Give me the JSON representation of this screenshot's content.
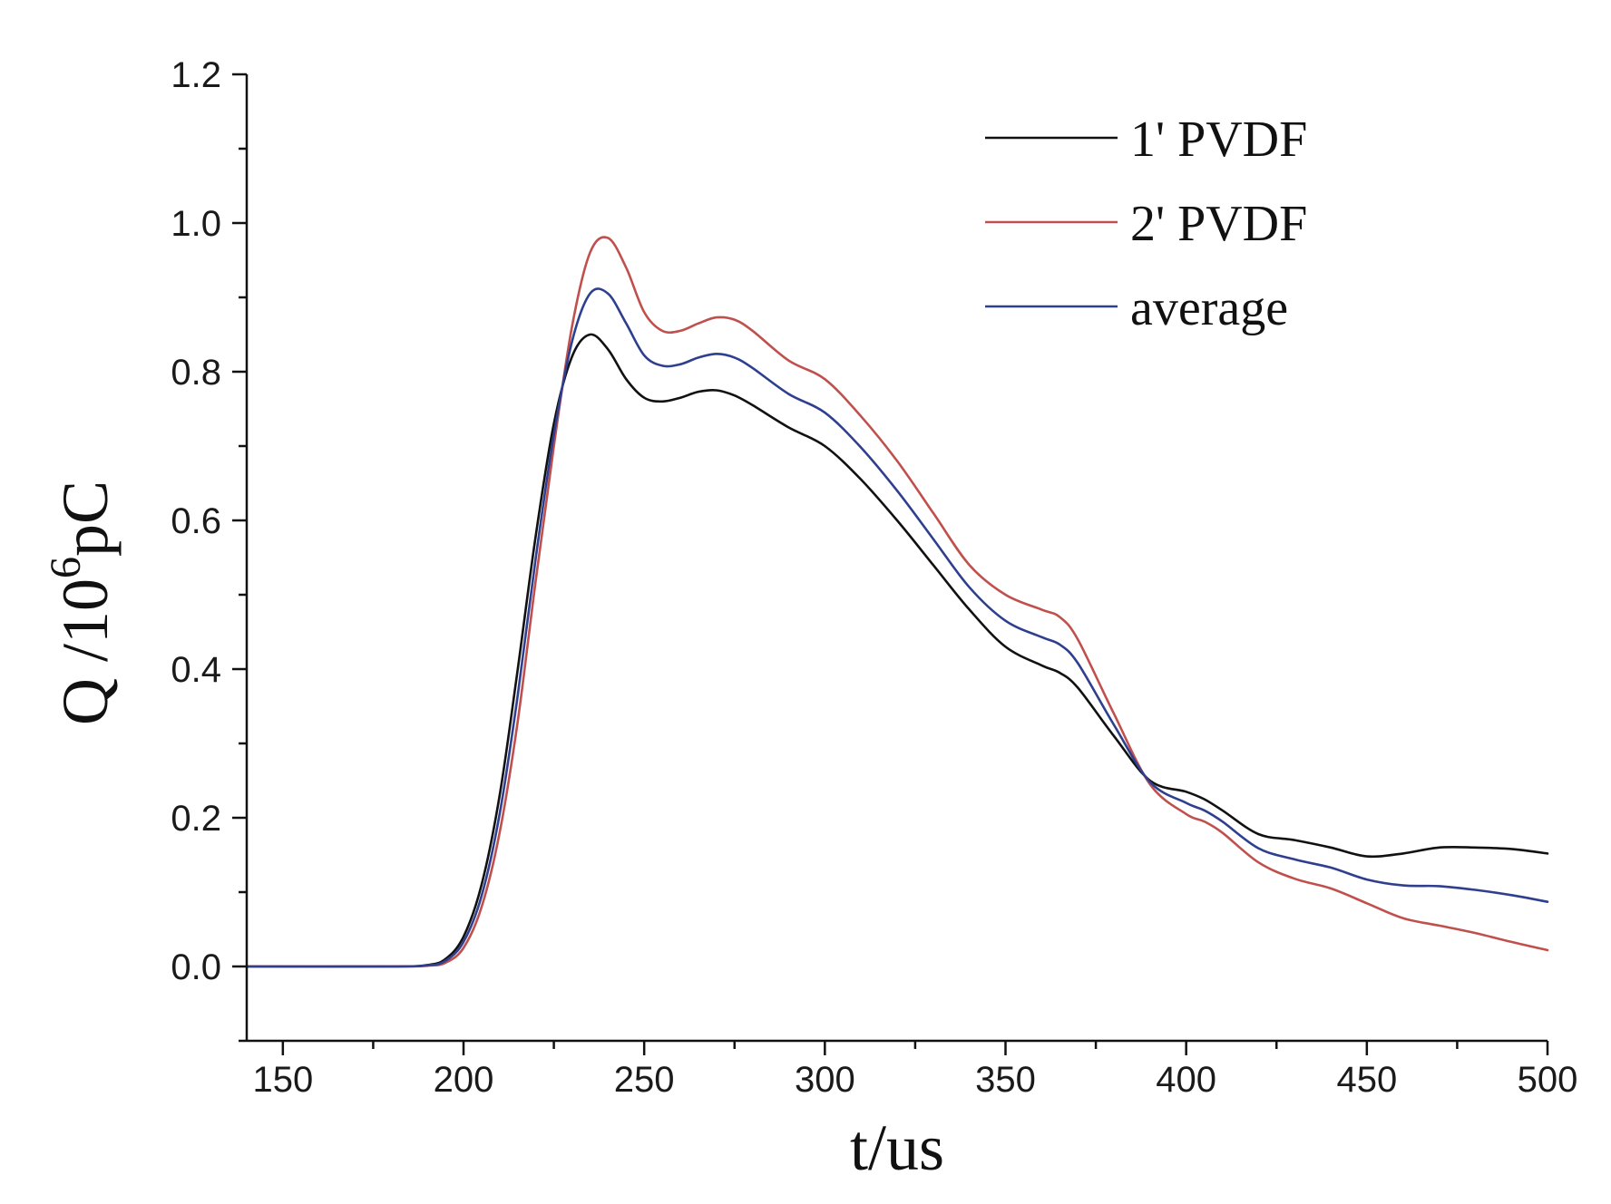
{
  "chart_data": {
    "type": "line",
    "title": "",
    "xlabel": "t/us",
    "ylabel": {
      "prefix": "Q /10",
      "exponent": "6",
      "suffix": "pC"
    },
    "xlim": [
      140,
      500
    ],
    "ylim": [
      -0.1,
      1.2
    ],
    "xticks": [
      150,
      200,
      250,
      300,
      350,
      400,
      450,
      500
    ],
    "xtick_labels": [
      "150",
      "200",
      "250",
      "300",
      "350",
      "400",
      "450",
      "500"
    ],
    "yticks": [
      0.0,
      0.2,
      0.4,
      0.6,
      0.8,
      1.0,
      1.2
    ],
    "ytick_labels": [
      "0.0",
      "0.2",
      "0.4",
      "0.6",
      "0.8",
      "1.0",
      "1.2"
    ],
    "grid": false,
    "legend_position": "top-right",
    "series": [
      {
        "name": "1' PVDF",
        "color": "#111111",
        "x": [
          140,
          180,
          190,
          195,
          200,
          205,
          210,
          215,
          220,
          225,
          230,
          235,
          240,
          245,
          250,
          255,
          260,
          265,
          270,
          275,
          280,
          290,
          300,
          310,
          320,
          330,
          340,
          350,
          360,
          365,
          370,
          380,
          390,
          400,
          405,
          410,
          420,
          430,
          440,
          450,
          460,
          470,
          480,
          490,
          500
        ],
        "y": [
          0.0,
          0.0,
          0.002,
          0.01,
          0.04,
          0.11,
          0.23,
          0.4,
          0.58,
          0.73,
          0.82,
          0.85,
          0.83,
          0.79,
          0.765,
          0.76,
          0.765,
          0.773,
          0.775,
          0.768,
          0.755,
          0.725,
          0.7,
          0.655,
          0.6,
          0.54,
          0.48,
          0.43,
          0.405,
          0.395,
          0.375,
          0.31,
          0.25,
          0.235,
          0.225,
          0.21,
          0.178,
          0.17,
          0.16,
          0.148,
          0.152,
          0.16,
          0.16,
          0.158,
          0.152
        ]
      },
      {
        "name": "2' PVDF",
        "color": "#c0504d",
        "x": [
          140,
          180,
          190,
          195,
          200,
          205,
          210,
          215,
          220,
          225,
          230,
          235,
          240,
          245,
          250,
          255,
          260,
          265,
          270,
          275,
          280,
          290,
          300,
          310,
          320,
          330,
          340,
          350,
          360,
          365,
          370,
          380,
          390,
          400,
          405,
          410,
          420,
          430,
          440,
          450,
          460,
          470,
          480,
          490,
          500
        ],
        "y": [
          0.0,
          0.0,
          0.001,
          0.005,
          0.025,
          0.08,
          0.18,
          0.33,
          0.52,
          0.7,
          0.86,
          0.96,
          0.98,
          0.94,
          0.88,
          0.855,
          0.855,
          0.865,
          0.873,
          0.87,
          0.855,
          0.815,
          0.79,
          0.74,
          0.68,
          0.61,
          0.54,
          0.5,
          0.48,
          0.47,
          0.44,
          0.34,
          0.245,
          0.205,
          0.195,
          0.18,
          0.14,
          0.118,
          0.105,
          0.085,
          0.065,
          0.055,
          0.045,
          0.033,
          0.022
        ]
      },
      {
        "name": "average",
        "color": "#2f3f8f",
        "x": [
          140,
          180,
          190,
          195,
          200,
          205,
          210,
          215,
          220,
          225,
          230,
          235,
          240,
          245,
          250,
          255,
          260,
          265,
          270,
          275,
          280,
          290,
          300,
          310,
          320,
          330,
          340,
          350,
          360,
          365,
          370,
          380,
          390,
          400,
          405,
          410,
          420,
          430,
          440,
          450,
          460,
          470,
          480,
          490,
          500
        ],
        "y": [
          0.0,
          0.0,
          0.0015,
          0.0075,
          0.033,
          0.095,
          0.205,
          0.365,
          0.55,
          0.715,
          0.84,
          0.905,
          0.905,
          0.865,
          0.822,
          0.808,
          0.81,
          0.819,
          0.824,
          0.819,
          0.805,
          0.77,
          0.745,
          0.698,
          0.64,
          0.575,
          0.51,
          0.465,
          0.443,
          0.433,
          0.408,
          0.325,
          0.248,
          0.22,
          0.21,
          0.195,
          0.159,
          0.144,
          0.133,
          0.117,
          0.109,
          0.108,
          0.103,
          0.096,
          0.087
        ]
      }
    ]
  }
}
